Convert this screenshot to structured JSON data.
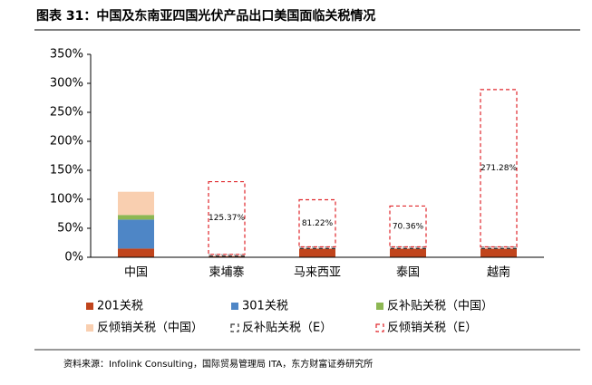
{
  "chart_data": {
    "type": "stacked_bar",
    "title": "图表 31：中国及东南亚四国光伏产品出口美国面临关税情况",
    "source": "资料来源：Infolink Consulting，国际贸易管理局 ITA，东方财富证券研究所",
    "categories": [
      "中国",
      "柬埔寨",
      "马来西亚",
      "泰国",
      "越南"
    ],
    "series": [
      {
        "name": "201关税",
        "color": "#c0441c",
        "style": "solid",
        "values": [
          15,
          2,
          15,
          15,
          15
        ]
      },
      {
        "name": "301关税",
        "color": "#4e86c6",
        "style": "solid",
        "values": [
          50,
          0,
          0,
          0,
          0
        ]
      },
      {
        "name": "反补贴关税（中国）",
        "color": "#8db753",
        "style": "solid",
        "values": [
          8,
          0,
          0,
          0,
          0
        ]
      },
      {
        "name": "反倾销关税（中国）",
        "color": "#f9cfb0",
        "style": "solid",
        "values": [
          40,
          0,
          0,
          0,
          0
        ]
      },
      {
        "name": "反补贴关税（E）",
        "color": "#333333",
        "style": "dashed",
        "values": [
          0,
          3,
          3,
          3,
          3
        ]
      },
      {
        "name": "反倾销关税（E）",
        "color": "#e0262b",
        "style": "dashed",
        "values": [
          0,
          125.37,
          81.22,
          70.36,
          271.28
        ],
        "value_labels": [
          null,
          "125.37%",
          "81.22%",
          "70.36%",
          "271.28%"
        ]
      }
    ],
    "ylim": [
      0,
      350
    ],
    "yticks": [
      {
        "value": 0,
        "label": "0%"
      },
      {
        "value": 50,
        "label": "50%"
      },
      {
        "value": 100,
        "label": "100%"
      },
      {
        "value": 150,
        "label": "150%"
      },
      {
        "value": 200,
        "label": "200%"
      },
      {
        "value": 250,
        "label": "250%"
      },
      {
        "value": 300,
        "label": "300%"
      },
      {
        "value": 350,
        "label": "350%"
      }
    ],
    "legend": "bottom"
  }
}
